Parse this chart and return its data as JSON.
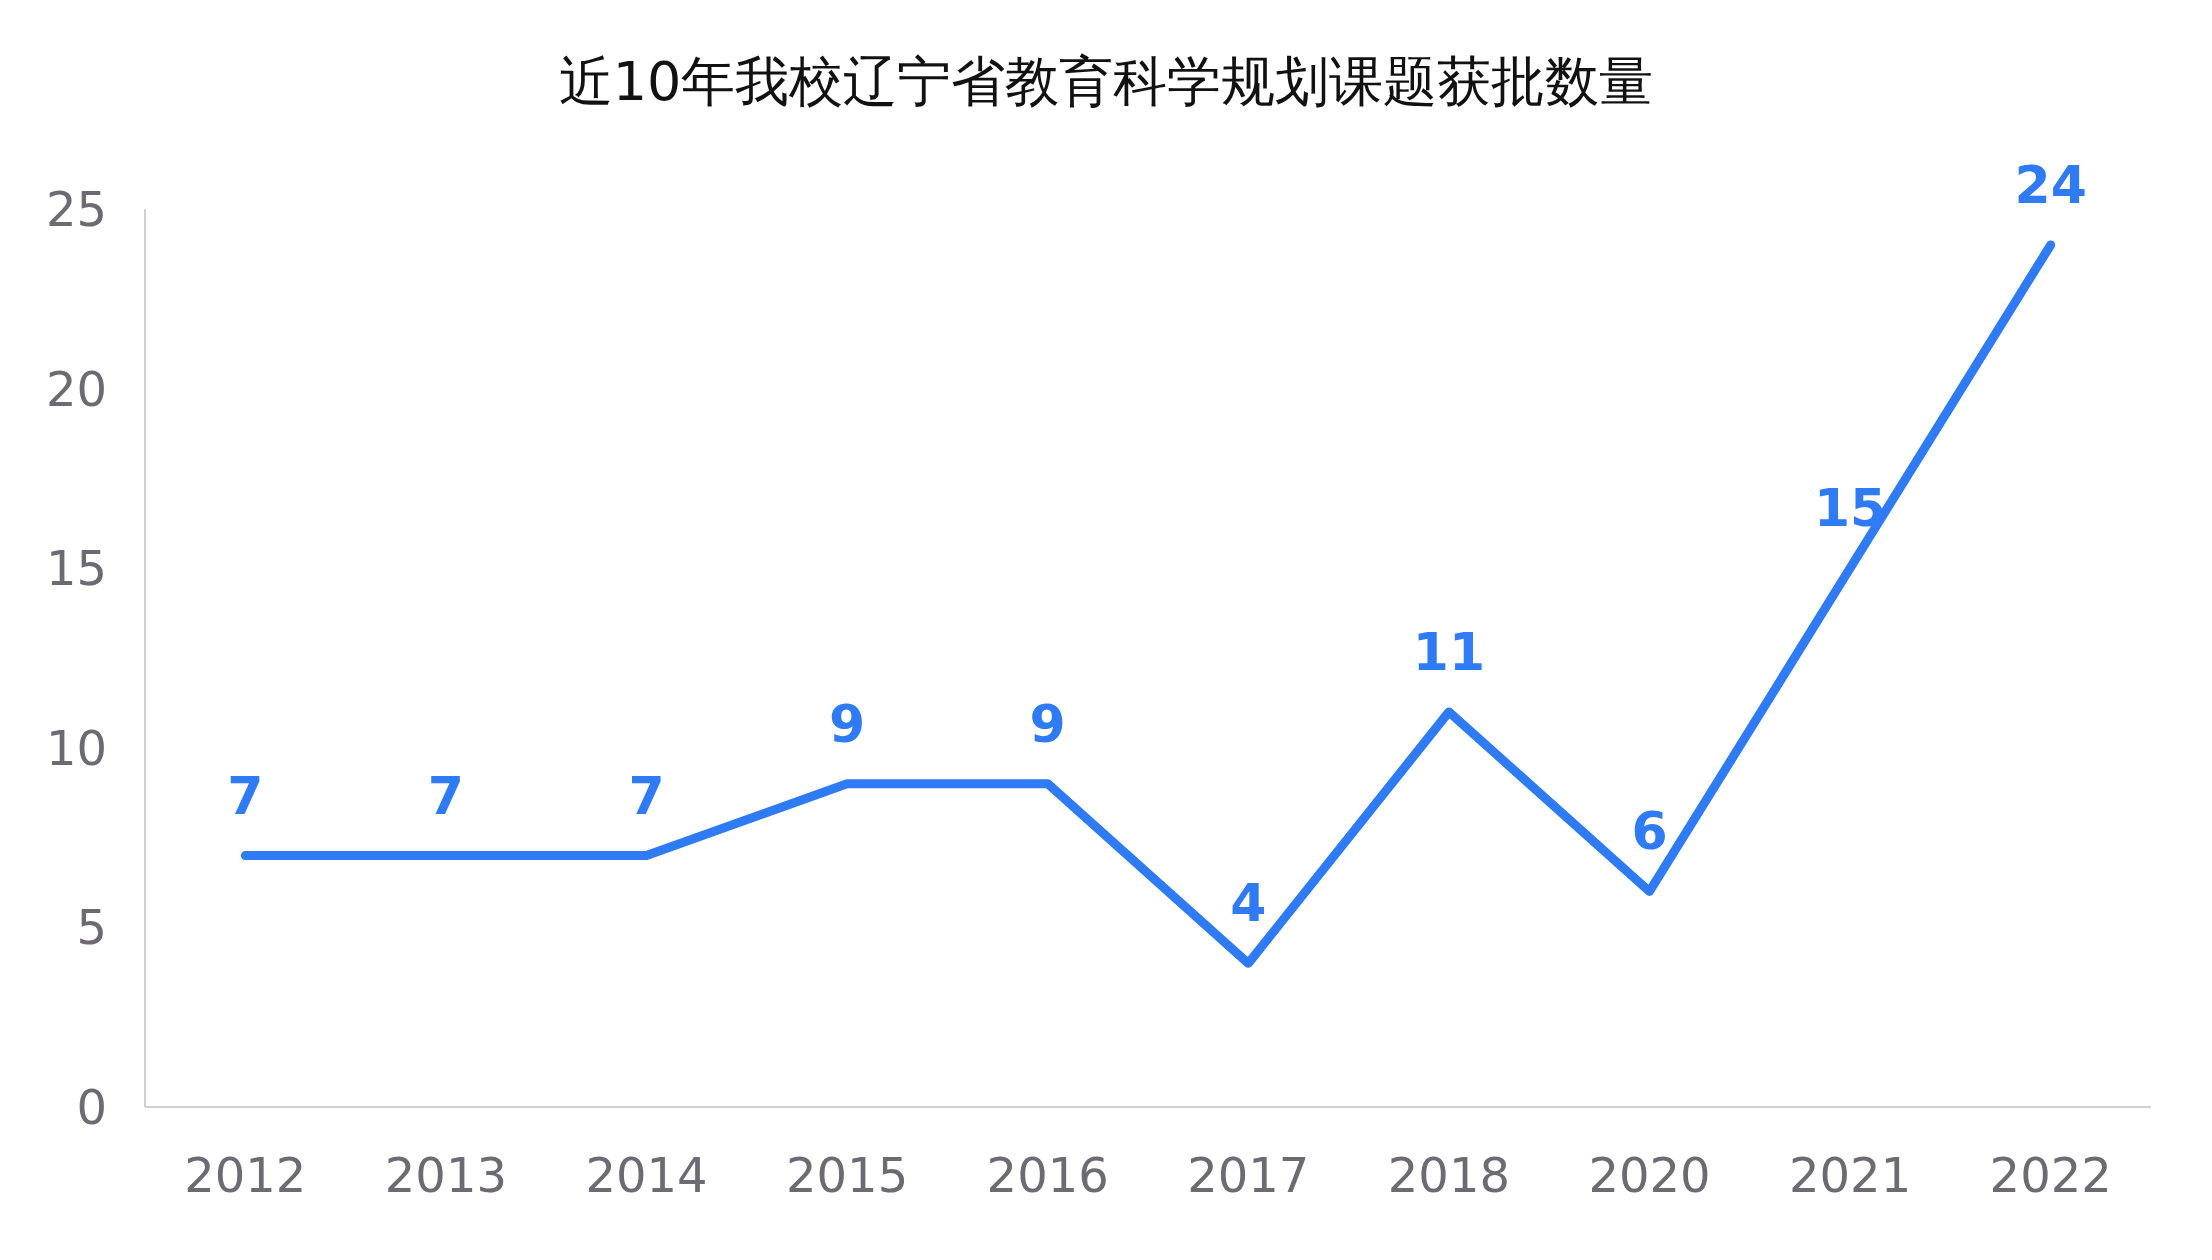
{
  "chart_data": {
    "type": "line",
    "title": "近10年我校辽宁省教育科学规划课题获批数量",
    "categories": [
      "2012",
      "2013",
      "2014",
      "2015",
      "2016",
      "2017",
      "2018",
      "2020",
      "2021",
      "2022"
    ],
    "values": [
      7,
      7,
      7,
      9,
      9,
      4,
      11,
      6,
      15,
      24
    ],
    "color": "#2f7bf5",
    "ylim": [
      0,
      25
    ],
    "yticks": [
      0,
      5,
      10,
      15,
      20,
      25
    ],
    "data_labels": true
  }
}
